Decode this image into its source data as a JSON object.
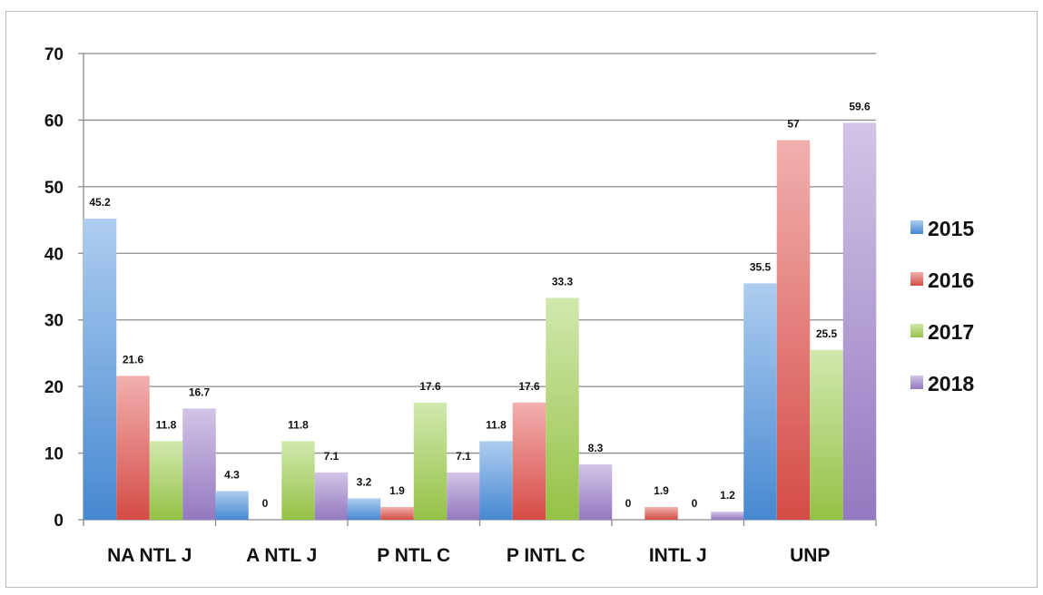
{
  "chart_data": {
    "type": "bar",
    "categories": [
      "NA NTL J",
      "A NTL J",
      "P NTL C",
      "P INTL C",
      "INTL J",
      "UNP"
    ],
    "series": [
      {
        "name": "2015",
        "color": "#4a8fdc",
        "values": [
          45.2,
          4.3,
          3.2,
          11.8,
          0,
          35.5
        ],
        "labels": [
          "45.2",
          "4.3",
          "3.2",
          "11.8",
          "0",
          "35.5"
        ]
      },
      {
        "name": "2016",
        "color": "#e0504a",
        "values": [
          21.6,
          0,
          1.9,
          17.6,
          1.9,
          57
        ],
        "labels": [
          "21.6",
          "0",
          "1.9",
          "17.6",
          "1.9",
          "57"
        ]
      },
      {
        "name": "2017",
        "color": "#9ccc4a",
        "values": [
          11.8,
          11.8,
          17.6,
          33.3,
          0,
          25.5
        ],
        "labels": [
          "11.8",
          "11.8",
          "17.6",
          "33.3",
          "0",
          "25.5"
        ]
      },
      {
        "name": "2018",
        "color": "#9b7fc9",
        "values": [
          16.7,
          7.1,
          7.1,
          8.3,
          1.2,
          59.6
        ],
        "labels": [
          "16.7",
          "7.1",
          "7.1",
          "8.3",
          "1.2",
          "59.6"
        ]
      }
    ],
    "yticks": [
      "0",
      "10",
      "20",
      "30",
      "40",
      "50",
      "60",
      "70"
    ],
    "ylim": [
      0,
      70
    ],
    "grid": true,
    "legend_position": "right",
    "title": "",
    "xlabel": "",
    "ylabel": ""
  }
}
